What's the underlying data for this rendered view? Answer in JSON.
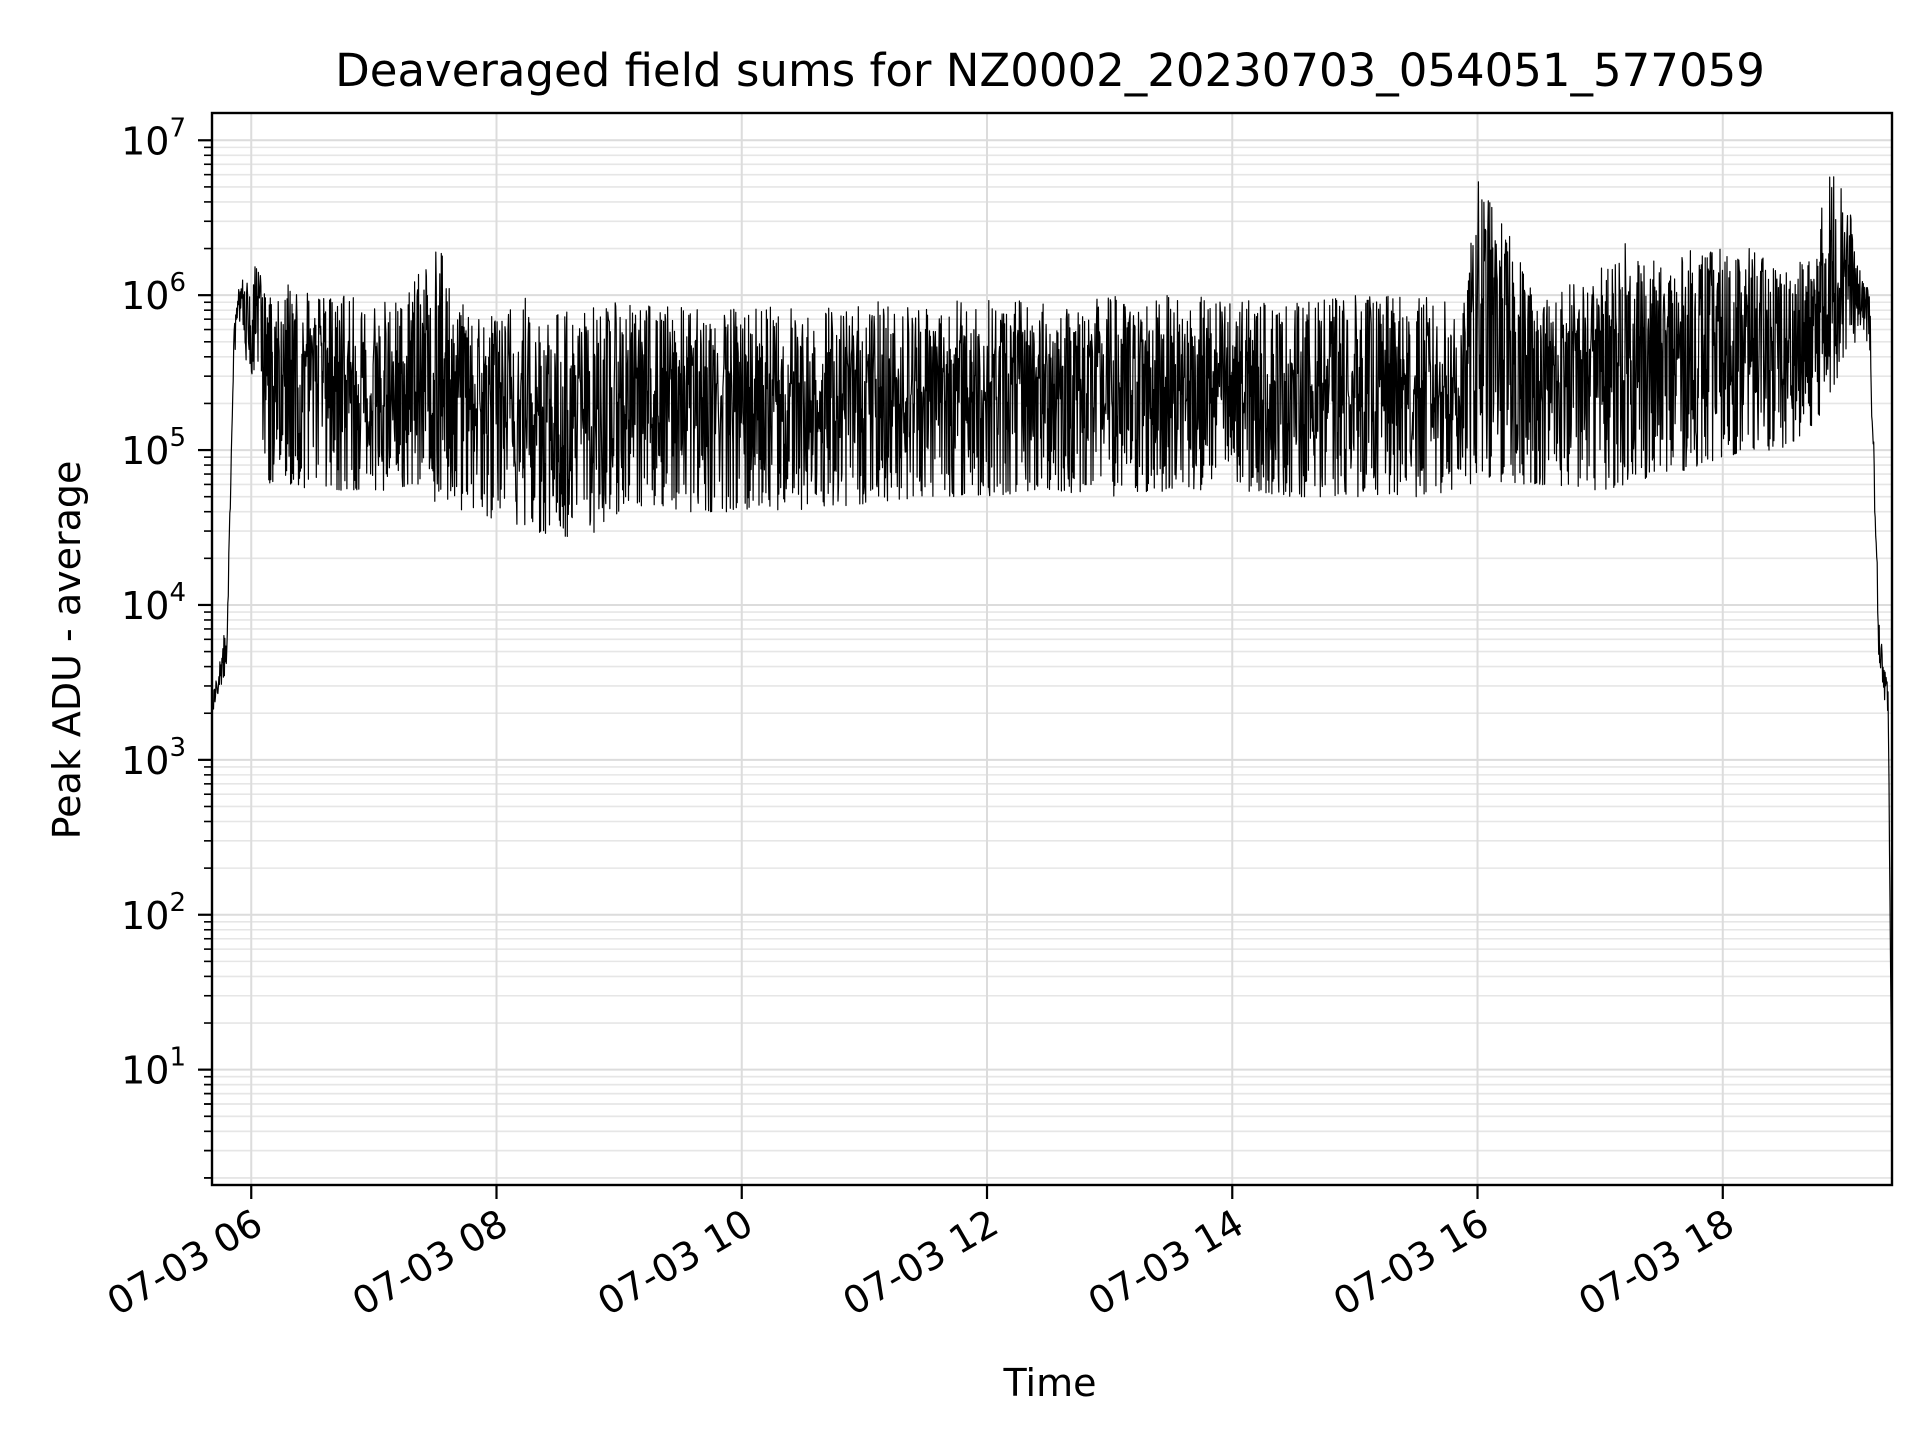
{
  "chart_data": {
    "type": "line",
    "title": "Deaveraged field sums for NZ0002_20230703_054051_577059",
    "xlabel": "Time",
    "ylabel": "Peak ADU - average",
    "yscale": "log",
    "xlim": [
      5.68,
      19.38
    ],
    "ylim": [
      1.8,
      15000000
    ],
    "grid": true,
    "legend": "none",
    "line_color": "#000000",
    "x_ticks": [
      {
        "value": 6,
        "label": "07-03 06"
      },
      {
        "value": 8,
        "label": "07-03 08"
      },
      {
        "value": 10,
        "label": "07-03 10"
      },
      {
        "value": 12,
        "label": "07-03 12"
      },
      {
        "value": 14,
        "label": "07-03 14"
      },
      {
        "value": 16,
        "label": "07-03 16"
      },
      {
        "value": 18,
        "label": "07-03 18"
      }
    ],
    "y_ticks": [
      {
        "value": 10,
        "base": "10",
        "exp": "1"
      },
      {
        "value": 100,
        "base": "10",
        "exp": "2"
      },
      {
        "value": 1000,
        "base": "10",
        "exp": "3"
      },
      {
        "value": 10000,
        "base": "10",
        "exp": "4"
      },
      {
        "value": 100000,
        "base": "10",
        "exp": "5"
      },
      {
        "value": 1000000,
        "base": "10",
        "exp": "6"
      },
      {
        "value": 10000000,
        "base": "10",
        "exp": "7"
      }
    ],
    "series": [
      {
        "x": [
          5.68,
          5.72,
          5.76,
          5.8,
          5.84,
          5.86,
          5.88,
          5.9,
          5.93,
          5.95,
          6.0,
          6.05,
          6.1,
          6.15,
          6.25,
          6.35,
          6.5,
          6.75,
          7.0,
          7.25,
          7.5,
          7.75,
          8.0,
          8.25,
          8.5,
          8.75,
          9.0,
          9.25,
          9.5,
          9.75,
          10.0,
          10.5,
          11.0,
          11.5,
          12.0,
          12.5,
          13.0,
          13.5,
          14.0,
          14.5,
          15.0,
          15.5,
          15.9,
          16.0,
          16.5,
          17.0,
          17.25,
          17.5,
          17.75,
          18.0,
          18.25,
          18.5,
          18.75,
          18.85,
          19.0,
          19.1,
          19.15,
          19.2,
          19.25,
          19.28,
          19.32,
          19.35,
          19.38
        ],
        "upper": [
          2500,
          3500,
          6000,
          7000,
          120000,
          600000,
          1000000,
          1200000,
          1300000,
          1200000,
          1200000,
          1800000,
          1100000,
          1000000,
          1100000,
          1300000,
          1000000,
          1000000,
          900000,
          900000,
          2300000,
          800000,
          800000,
          1100000,
          800000,
          850000,
          900000,
          900000,
          850000,
          850000,
          850000,
          900000,
          900000,
          950000,
          950000,
          900000,
          1000000,
          1000000,
          950000,
          900000,
          1000000,
          1000000,
          900000,
          6300000,
          1000000,
          1500000,
          2400000,
          1500000,
          2000000,
          2000000,
          2000000,
          1500000,
          1800000,
          6500000,
          7000000,
          1500000,
          1400000,
          1000000,
          30000,
          7000,
          4000,
          3000,
          3.8
        ],
        "lower": [
          1800,
          2200,
          3000,
          4000,
          100000,
          400000,
          500000,
          600000,
          500000,
          400000,
          300000,
          300000,
          100000,
          60000,
          60000,
          60000,
          55000,
          55000,
          55000,
          55000,
          45000,
          40000,
          35000,
          30000,
          28000,
          27000,
          40000,
          45000,
          40000,
          40000,
          40000,
          40000,
          45000,
          50000,
          50000,
          55000,
          50000,
          55000,
          55000,
          50000,
          50000,
          50000,
          55000,
          60000,
          60000,
          55000,
          60000,
          70000,
          75000,
          90000,
          100000,
          100000,
          150000,
          200000,
          400000,
          500000,
          600000,
          400000,
          20000,
          2500,
          2200,
          2000,
          3.8
        ]
      }
    ]
  }
}
